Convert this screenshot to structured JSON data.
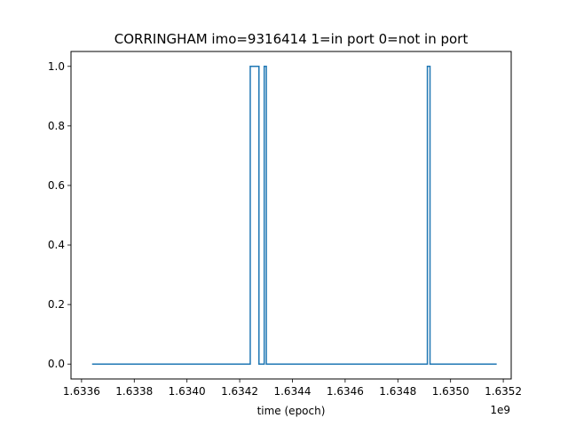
{
  "chart_data": {
    "type": "line",
    "title": "CORRINGHAM imo=9316414 1=in port 0=not in port",
    "xlabel": "time (epoch)",
    "ylabel": "",
    "x_offset_label": "1e9",
    "xlim": [
      1.63356,
      1.63523
    ],
    "ylim": [
      -0.05,
      1.05
    ],
    "x_ticks": [
      1.6336,
      1.6338,
      1.634,
      1.6342,
      1.6344,
      1.6346,
      1.6348,
      1.635,
      1.6352
    ],
    "x_tick_labels": [
      "1.6336",
      "1.6338",
      "1.6340",
      "1.6342",
      "1.6344",
      "1.6346",
      "1.6348",
      "1.6350",
      "1.6352"
    ],
    "y_ticks": [
      0.0,
      0.2,
      0.4,
      0.6,
      0.8,
      1.0
    ],
    "y_tick_labels": [
      "0.0",
      "0.2",
      "0.4",
      "0.6",
      "0.8",
      "1.0"
    ],
    "grid": false,
    "colors": {
      "line": "#1f77b4"
    },
    "series": [
      {
        "x": [
          1.63364,
          1.63424,
          1.63424,
          1.634273,
          1.634273,
          1.634293,
          1.634293,
          1.634301,
          1.634301,
          1.634912,
          1.634912,
          1.634922,
          1.634922,
          1.635175
        ],
        "y": [
          0,
          0,
          1,
          1,
          0,
          0,
          1,
          1,
          0,
          0,
          1,
          1,
          0,
          0
        ]
      }
    ]
  }
}
